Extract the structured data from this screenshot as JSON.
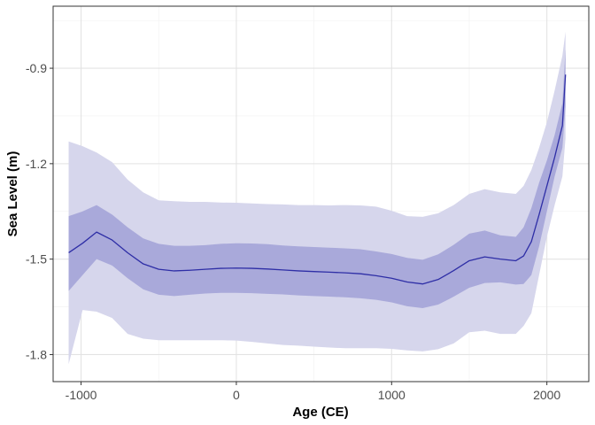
{
  "chart_data": {
    "type": "line",
    "xlabel": "Age (CE)",
    "ylabel": "Sea Level (m)",
    "xlim": [
      -1180,
      2270
    ],
    "ylim": [
      -1.885,
      -0.705
    ],
    "x_ticks": [
      -1000,
      0,
      1000,
      2000
    ],
    "x_tick_labels": [
      "-1000",
      "0",
      "1000",
      "2000"
    ],
    "y_ticks": [
      -1.8,
      -1.5,
      -1.2,
      -0.9
    ],
    "y_tick_labels": [
      "-1.8",
      "-1.5",
      "-1.2",
      "-0.9"
    ],
    "grid": true,
    "legend": "none",
    "colors": {
      "line": "#2e2ea6",
      "band_inner": "#9999d4",
      "band_outer": "#d6d6ec",
      "grid_major": "#e3e3e3",
      "grid_minor": "#f1f1f1",
      "panel_border": "#333333"
    },
    "series": [
      {
        "x": [
          -1080,
          -990,
          -900,
          -800,
          -700,
          -600,
          -500,
          -400,
          -300,
          -200,
          -100,
          0,
          100,
          200,
          300,
          400,
          500,
          600,
          700,
          800,
          900,
          1000,
          1100,
          1200,
          1300,
          1400,
          1500,
          1600,
          1700,
          1800,
          1850,
          1900,
          1950,
          2000,
          2050,
          2100,
          2120
        ],
        "y": [
          -1.48,
          -1.45,
          -1.415,
          -1.44,
          -1.48,
          -1.515,
          -1.532,
          -1.537,
          -1.535,
          -1.532,
          -1.529,
          -1.528,
          -1.529,
          -1.531,
          -1.534,
          -1.537,
          -1.539,
          -1.541,
          -1.543,
          -1.546,
          -1.552,
          -1.56,
          -1.572,
          -1.578,
          -1.564,
          -1.536,
          -1.505,
          -1.493,
          -1.5,
          -1.505,
          -1.49,
          -1.445,
          -1.36,
          -1.27,
          -1.18,
          -1.08,
          -0.92
        ],
        "y_lo_50": [
          -1.6,
          -1.55,
          -1.5,
          -1.52,
          -1.56,
          -1.595,
          -1.612,
          -1.616,
          -1.612,
          -1.608,
          -1.606,
          -1.606,
          -1.607,
          -1.609,
          -1.611,
          -1.614,
          -1.616,
          -1.618,
          -1.62,
          -1.623,
          -1.628,
          -1.636,
          -1.648,
          -1.654,
          -1.643,
          -1.618,
          -1.59,
          -1.575,
          -1.573,
          -1.58,
          -1.578,
          -1.55,
          -1.46,
          -1.35,
          -1.24,
          -1.15,
          -1.02
        ],
        "y_hi_50": [
          -1.365,
          -1.35,
          -1.33,
          -1.36,
          -1.4,
          -1.435,
          -1.452,
          -1.458,
          -1.458,
          -1.456,
          -1.452,
          -1.45,
          -1.451,
          -1.453,
          -1.457,
          -1.46,
          -1.462,
          -1.464,
          -1.466,
          -1.469,
          -1.476,
          -1.484,
          -1.496,
          -1.502,
          -1.485,
          -1.455,
          -1.42,
          -1.41,
          -1.425,
          -1.43,
          -1.4,
          -1.34,
          -1.26,
          -1.19,
          -1.11,
          -1.01,
          -0.84
        ],
        "y_lo_95": [
          -1.83,
          -1.66,
          -1.665,
          -1.685,
          -1.735,
          -1.75,
          -1.755,
          -1.755,
          -1.755,
          -1.755,
          -1.755,
          -1.756,
          -1.76,
          -1.765,
          -1.77,
          -1.772,
          -1.775,
          -1.778,
          -1.78,
          -1.78,
          -1.78,
          -1.782,
          -1.787,
          -1.79,
          -1.783,
          -1.765,
          -1.73,
          -1.725,
          -1.735,
          -1.735,
          -1.71,
          -1.67,
          -1.55,
          -1.43,
          -1.33,
          -1.24,
          -1.12
        ],
        "y_hi_95": [
          -1.13,
          -1.145,
          -1.165,
          -1.195,
          -1.25,
          -1.29,
          -1.315,
          -1.318,
          -1.32,
          -1.32,
          -1.322,
          -1.323,
          -1.325,
          -1.327,
          -1.328,
          -1.33,
          -1.33,
          -1.331,
          -1.33,
          -1.331,
          -1.335,
          -1.348,
          -1.365,
          -1.367,
          -1.356,
          -1.33,
          -1.295,
          -1.28,
          -1.29,
          -1.295,
          -1.27,
          -1.22,
          -1.15,
          -1.07,
          -0.97,
          -0.86,
          -0.785
        ]
      }
    ]
  }
}
